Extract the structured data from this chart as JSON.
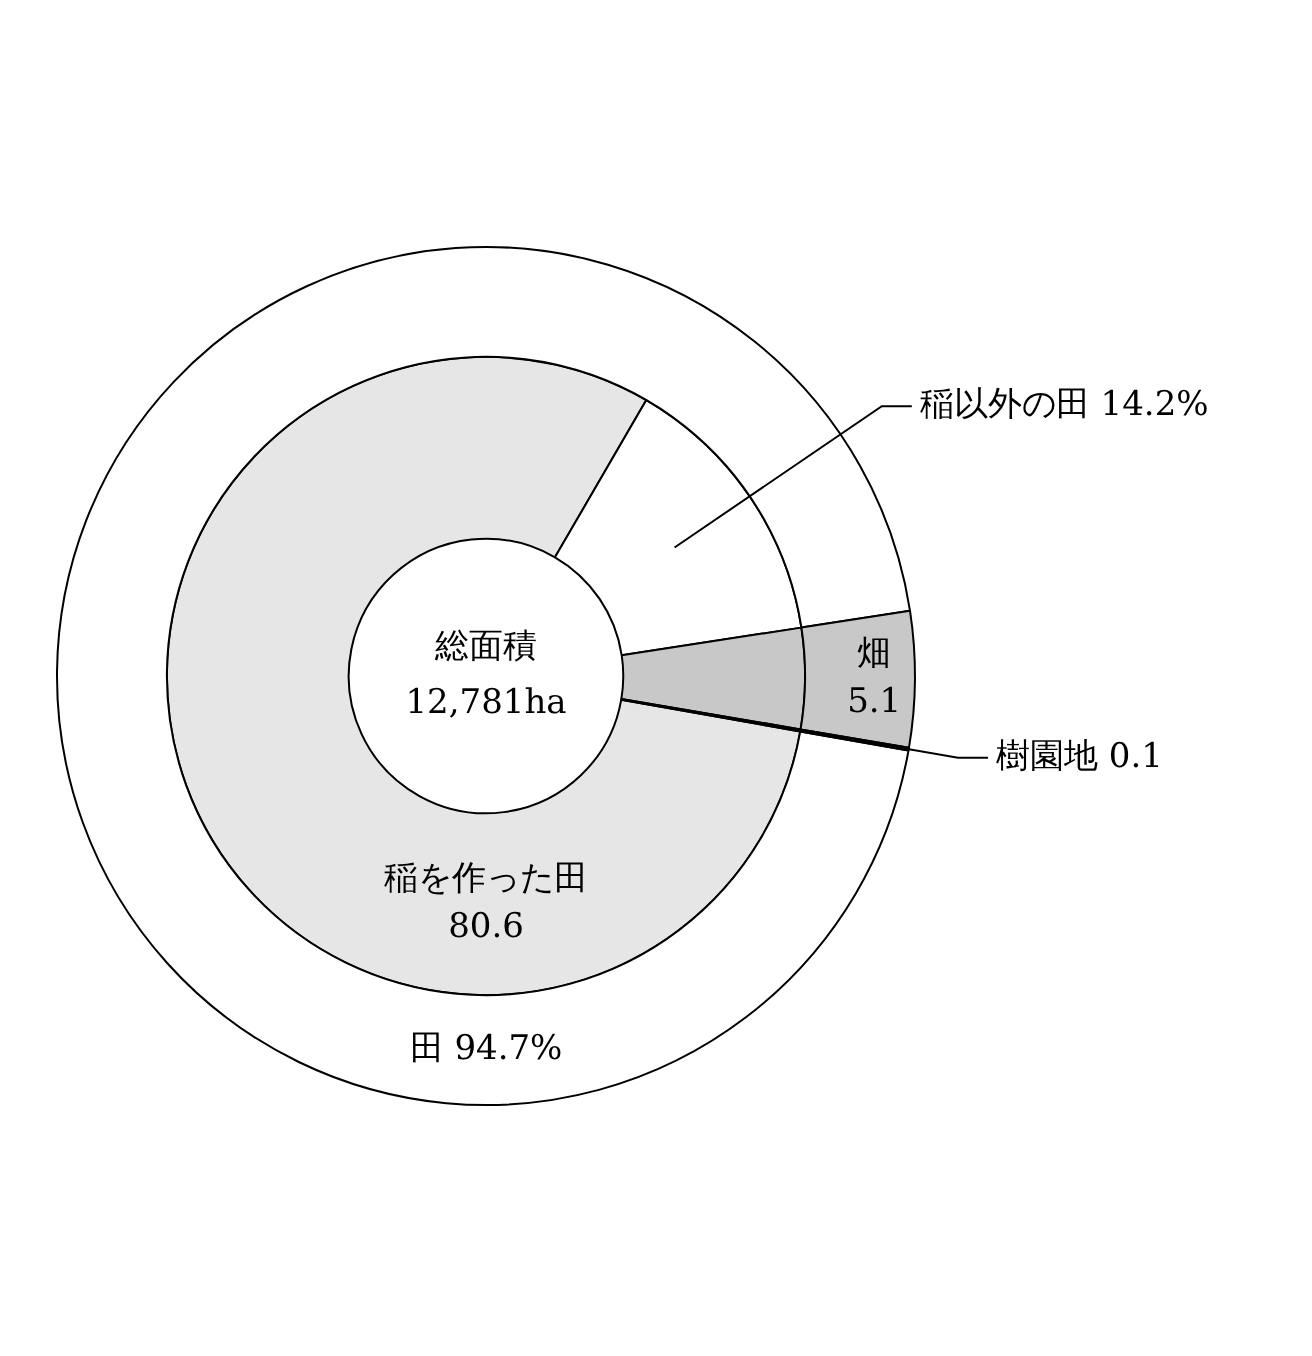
{
  "chart_data": {
    "type": "donut",
    "categories": [
      "稲を作った田",
      "稲以外の田",
      "畑",
      "樹園地"
    ],
    "series": [
      {
        "name": "田",
        "colors": [
          "#ffffff",
          "#ffffff",
          "#c8c8c8",
          "#ffffff"
        ],
        "values": [
          94.7,
          null,
          5.1,
          0.1
        ],
        "value_labels": [
          "94.7%",
          null,
          null,
          null
        ]
      },
      {
        "colors": [
          "#e6e6e6",
          "#ffffff",
          "#c8c8c8",
          "#ffffff"
        ],
        "values": [
          80.6,
          14.2,
          5.1,
          0.1
        ],
        "value_labels": [
          "80.6",
          "14.2%",
          "5.1",
          "0.1"
        ]
      }
    ],
    "annotations": [
      "総面積",
      "12,781ha"
    ],
    "legend": false
  }
}
